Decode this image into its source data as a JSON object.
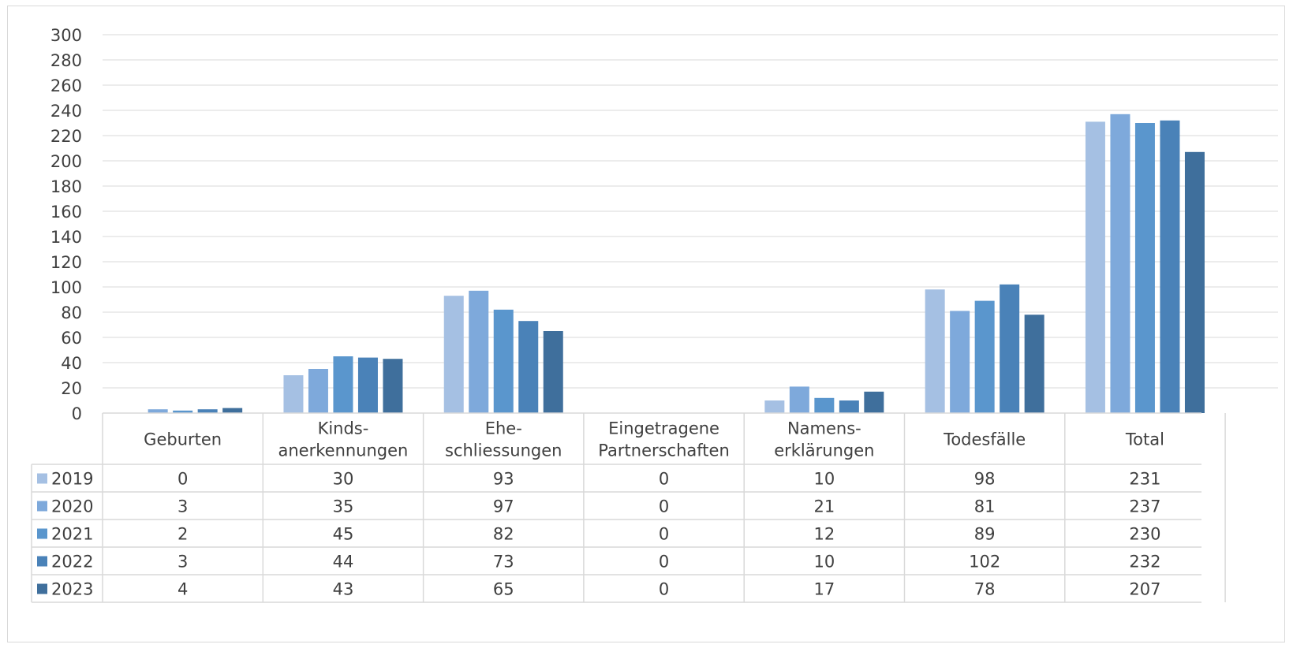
{
  "chart_data": {
    "type": "bar",
    "categories": [
      [
        "Geburten"
      ],
      [
        "Kinds-",
        "anerkennungen"
      ],
      [
        "Ehe-",
        "schliessungen"
      ],
      [
        "Eingetragene",
        "Partnerschaften"
      ],
      [
        "Namens-",
        "erklärungen"
      ],
      [
        "Todesfälle"
      ],
      [
        "Total"
      ]
    ],
    "series": [
      {
        "name": "2019",
        "color": "#a5c0e3",
        "values": [
          0,
          30,
          93,
          0,
          10,
          98,
          231
        ]
      },
      {
        "name": "2020",
        "color": "#7ea9db",
        "values": [
          3,
          35,
          97,
          0,
          21,
          81,
          237
        ]
      },
      {
        "name": "2021",
        "color": "#5a96cd",
        "values": [
          2,
          45,
          82,
          0,
          12,
          89,
          230
        ]
      },
      {
        "name": "2022",
        "color": "#4a82b8",
        "values": [
          3,
          44,
          73,
          0,
          10,
          102,
          232
        ]
      },
      {
        "name": "2023",
        "color": "#3f6f9c",
        "values": [
          4,
          43,
          65,
          0,
          17,
          78,
          207
        ]
      }
    ],
    "ylim": [
      0,
      300
    ],
    "yticks": [
      0,
      20,
      40,
      60,
      80,
      100,
      120,
      140,
      160,
      180,
      200,
      220,
      240,
      260,
      280,
      300
    ],
    "grid": true,
    "legend": "data-table",
    "gridline_color": "#d9d9d9",
    "table_border_color": "#d9d9d9"
  }
}
